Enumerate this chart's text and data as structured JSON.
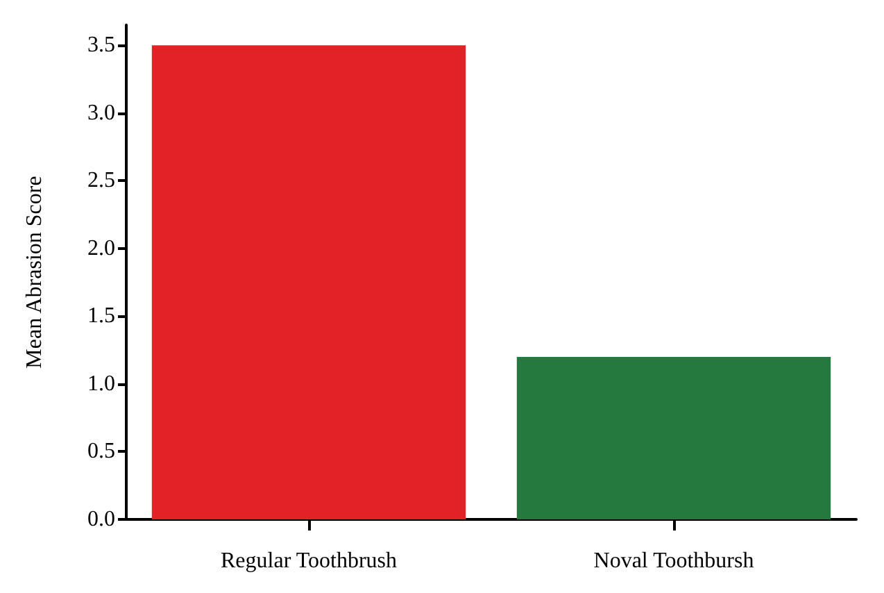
{
  "chart_data": {
    "type": "bar",
    "ylabel": "Mean Abrasion Score",
    "categories": [
      "Regular Toothbrush",
      "Noval Toothbursh"
    ],
    "values": [
      3.5,
      1.2
    ],
    "colors": [
      "#e32227",
      "#25793e"
    ],
    "ylim": [
      0,
      3.65
    ],
    "yticks": [
      {
        "value": 0,
        "label": "0.0"
      },
      {
        "value": 0.5,
        "label": "0.5"
      },
      {
        "value": 1,
        "label": "1.0"
      },
      {
        "value": 1.5,
        "label": "1.5"
      },
      {
        "value": 2,
        "label": "2.0"
      },
      {
        "value": 2.5,
        "label": "2.5"
      },
      {
        "value": 3,
        "label": "3.0"
      },
      {
        "value": 3.5,
        "label": "3.5"
      }
    ],
    "grid": false
  }
}
